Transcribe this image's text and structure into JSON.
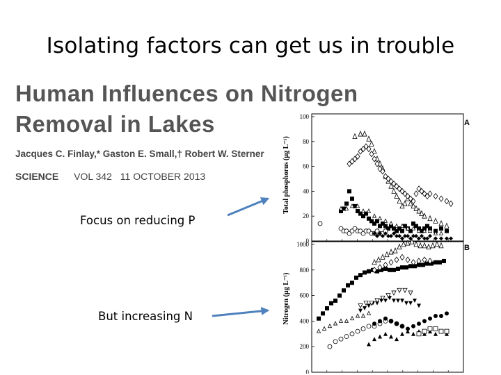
{
  "slide": {
    "title": "Isolating factors can get us in trouble",
    "label_p": "Focus on reducing P",
    "label_n": "But increasing N"
  },
  "paper": {
    "title_line1": "Human Influences on Nitrogen",
    "title_line2": "Removal in Lakes",
    "authors": "Jacques C. Finlay,* Gaston E. Small,† Robert W. Sterner",
    "journal": "SCIENCE",
    "volume": "VOL 342",
    "date": "11 OCTOBER 2013"
  },
  "colors": {
    "arrow": "#4f81bd",
    "text": "#000000",
    "paper_text": "#555555"
  },
  "chart_data": [
    {
      "type": "scatter",
      "panel": "A",
      "ylabel": "Total phosphorus (µg L⁻¹)",
      "ylim": [
        0,
        100
      ],
      "yticks": [
        0,
        20,
        40,
        60,
        80,
        100
      ],
      "series": [
        {
          "marker": "open-triangle",
          "x": [
            0.26,
            0.3,
            0.33,
            0.36,
            0.38,
            0.4,
            0.42,
            0.44,
            0.46,
            0.48,
            0.5,
            0.52,
            0.54,
            0.56,
            0.58,
            0.6,
            0.62,
            0.64,
            0.66,
            0.68,
            0.7,
            0.72,
            0.74,
            0.76,
            0.8,
            0.84,
            0.88,
            0.92
          ],
          "y": [
            84,
            86,
            86,
            82,
            78,
            72,
            66,
            62,
            58,
            52,
            48,
            44,
            40,
            36,
            32,
            28,
            30,
            34,
            30,
            28,
            26,
            24,
            22,
            20,
            18,
            16,
            14,
            12
          ]
        },
        {
          "marker": "open-diamond",
          "x": [
            0.22,
            0.24,
            0.26,
            0.28,
            0.3,
            0.32,
            0.34,
            0.36,
            0.38,
            0.4,
            0.42,
            0.44,
            0.46,
            0.48,
            0.5,
            0.52,
            0.54,
            0.56,
            0.58,
            0.6,
            0.62,
            0.64,
            0.66,
            0.68,
            0.7,
            0.72,
            0.74,
            0.76,
            0.78,
            0.8,
            0.84,
            0.88,
            0.92,
            0.95
          ],
          "y": [
            62,
            64,
            66,
            68,
            72,
            74,
            76,
            74,
            70,
            66,
            62,
            58,
            56,
            52,
            50,
            48,
            46,
            44,
            42,
            40,
            38,
            36,
            34,
            32,
            38,
            42,
            40,
            38,
            36,
            38,
            36,
            34,
            32,
            30
          ]
        },
        {
          "marker": "filled-square",
          "x": [
            0.16,
            0.18,
            0.2,
            0.22,
            0.24,
            0.26,
            0.28,
            0.3,
            0.32,
            0.34,
            0.36,
            0.38,
            0.4,
            0.42,
            0.44,
            0.46,
            0.48,
            0.5,
            0.52,
            0.54,
            0.56,
            0.58,
            0.6,
            0.62,
            0.64,
            0.66,
            0.68,
            0.7,
            0.72,
            0.74,
            0.76,
            0.78,
            0.8,
            0.84,
            0.88,
            0.92
          ],
          "y": [
            24,
            26,
            30,
            40,
            34,
            28,
            24,
            22,
            20,
            22,
            18,
            16,
            14,
            16,
            12,
            14,
            12,
            10,
            12,
            10,
            8,
            10,
            8,
            12,
            10,
            8,
            14,
            12,
            10,
            8,
            10,
            12,
            10,
            8,
            10,
            8
          ]
        },
        {
          "marker": "open-triangle-small",
          "x": [
            0.16,
            0.2,
            0.24,
            0.28,
            0.32,
            0.36,
            0.4,
            0.44,
            0.48,
            0.52,
            0.56,
            0.6,
            0.64,
            0.68,
            0.72,
            0.76,
            0.8,
            0.84,
            0.88
          ],
          "y": [
            26,
            26,
            28,
            28,
            24,
            24,
            20,
            18,
            16,
            14,
            12,
            12,
            10,
            10,
            8,
            8,
            8,
            6,
            6
          ]
        },
        {
          "marker": "open-circle",
          "x": [
            0.01,
            0.16,
            0.18,
            0.2,
            0.22,
            0.24,
            0.26,
            0.28,
            0.3,
            0.32,
            0.34,
            0.36,
            0.38,
            0.4,
            0.42,
            0.44,
            0.46,
            0.48
          ],
          "y": [
            14,
            10,
            8,
            8,
            6,
            8,
            10,
            8,
            8,
            6,
            8,
            8,
            6,
            6,
            8,
            6,
            6,
            8
          ]
        },
        {
          "marker": "filled-diamond",
          "x": [
            0.4,
            0.42,
            0.44,
            0.46,
            0.48,
            0.5,
            0.52,
            0.54,
            0.56,
            0.58,
            0.6,
            0.62,
            0.64,
            0.66,
            0.68,
            0.7,
            0.72,
            0.74,
            0.76,
            0.78,
            0.8,
            0.84,
            0.88,
            0.92,
            0.95
          ],
          "y": [
            6,
            4,
            6,
            4,
            6,
            4,
            4,
            6,
            4,
            4,
            2,
            4,
            4,
            2,
            4,
            4,
            2,
            4,
            2,
            2,
            4,
            2,
            2,
            2,
            2
          ]
        }
      ]
    },
    {
      "type": "scatter",
      "panel": "B",
      "ylabel": "Nitrogen (µg L⁻¹)",
      "ylim": [
        0,
        1000
      ],
      "yticks": [
        0,
        200,
        400,
        600,
        800,
        1000
      ],
      "series": [
        {
          "marker": "filled-square",
          "x": [
            0.0,
            0.03,
            0.06,
            0.09,
            0.12,
            0.15,
            0.18,
            0.21,
            0.24,
            0.27,
            0.3,
            0.33,
            0.36,
            0.39,
            0.42,
            0.45,
            0.48,
            0.51,
            0.54,
            0.57,
            0.6,
            0.63,
            0.66,
            0.69,
            0.72,
            0.75,
            0.78,
            0.81,
            0.84,
            0.87,
            0.9
          ],
          "y": [
            420,
            460,
            500,
            540,
            560,
            600,
            640,
            680,
            700,
            740,
            760,
            780,
            790,
            800,
            790,
            800,
            810,
            800,
            800,
            810,
            820,
            820,
            830,
            830,
            840,
            840,
            850,
            850,
            860,
            860,
            870
          ]
        },
        {
          "marker": "open-triangle",
          "x": [
            0.4,
            0.43,
            0.46,
            0.49,
            0.52,
            0.55,
            0.58,
            0.61,
            0.64,
            0.67,
            0.7,
            0.73,
            0.76,
            0.79,
            0.82,
            0.85,
            0.88
          ],
          "y": [
            860,
            880,
            900,
            920,
            940,
            950,
            980,
            1000,
            1010,
            1020,
            1000,
            990,
            990,
            980,
            990,
            1000,
            990
          ]
        },
        {
          "marker": "open-diamond",
          "x": [
            0.4,
            0.44,
            0.48,
            0.52,
            0.56,
            0.6,
            0.64,
            0.68,
            0.72,
            0.76,
            0.8
          ],
          "y": [
            800,
            820,
            840,
            860,
            880,
            900,
            880,
            860,
            870,
            880,
            870
          ]
        },
        {
          "marker": "filled-triangle-down",
          "x": [
            0.3,
            0.33,
            0.36,
            0.39,
            0.42,
            0.45,
            0.48,
            0.51,
            0.54,
            0.57,
            0.6,
            0.63,
            0.66,
            0.69,
            0.72
          ],
          "y": [
            480,
            500,
            520,
            540,
            540,
            560,
            560,
            580,
            560,
            560,
            560,
            540,
            540,
            560,
            520
          ]
        },
        {
          "marker": "open-triangle-down",
          "x": [
            0.3,
            0.34,
            0.38,
            0.42,
            0.46,
            0.5,
            0.54,
            0.58,
            0.62,
            0.66
          ],
          "y": [
            520,
            540,
            540,
            560,
            580,
            600,
            620,
            640,
            640,
            620
          ]
        },
        {
          "marker": "open-triangle-small",
          "x": [
            0.0,
            0.04,
            0.08,
            0.12,
            0.16,
            0.2,
            0.24,
            0.28,
            0.32,
            0.36
          ],
          "y": [
            320,
            340,
            360,
            380,
            400,
            400,
            420,
            440,
            440,
            460
          ]
        },
        {
          "marker": "open-circle",
          "x": [
            0.08,
            0.12,
            0.16,
            0.2,
            0.24,
            0.28,
            0.32,
            0.36,
            0.4,
            0.44,
            0.48,
            0.52,
            0.56,
            0.6
          ],
          "y": [
            200,
            240,
            260,
            280,
            300,
            320,
            340,
            360,
            360,
            380,
            400,
            400,
            380,
            360
          ]
        },
        {
          "marker": "filled-circle",
          "x": [
            0.4,
            0.44,
            0.48,
            0.52,
            0.56,
            0.6,
            0.64,
            0.68,
            0.72,
            0.76,
            0.8,
            0.84,
            0.88,
            0.92
          ],
          "y": [
            380,
            400,
            420,
            400,
            380,
            360,
            340,
            360,
            380,
            400,
            420,
            440,
            440,
            460
          ]
        },
        {
          "marker": "filled-triangle",
          "x": [
            0.36,
            0.4,
            0.44,
            0.48,
            0.52,
            0.56,
            0.6,
            0.64,
            0.68,
            0.72,
            0.76,
            0.8,
            0.84,
            0.88,
            0.92
          ],
          "y": [
            220,
            260,
            280,
            300,
            280,
            260,
            300,
            320,
            300,
            320,
            300,
            320,
            300,
            320,
            300
          ]
        },
        {
          "marker": "open-square",
          "x": [
            0.72,
            0.76,
            0.8,
            0.84,
            0.88,
            0.92
          ],
          "y": [
            300,
            320,
            340,
            340,
            320,
            320
          ]
        }
      ]
    }
  ]
}
